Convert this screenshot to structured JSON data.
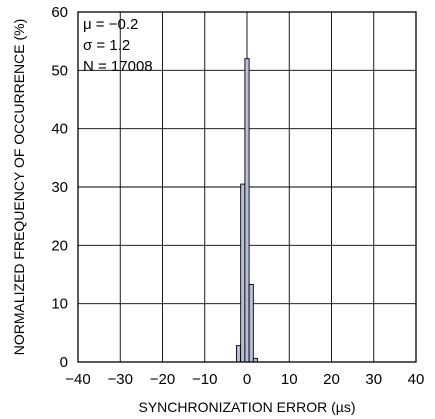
{
  "chart_data": {
    "type": "bar",
    "xlabel": "SYNCHRONIZATION ERROR (µs)",
    "ylabel": "NORMALIZED FREQUENCY OF OCCURRENCE (%)",
    "xlim": [
      -40,
      40
    ],
    "ylim": [
      0,
      60
    ],
    "x_ticks": [
      -40,
      -30,
      -20,
      -10,
      0,
      10,
      20,
      30,
      40
    ],
    "x_tick_labels": [
      "−40",
      "−30",
      "−20",
      "−10",
      "0",
      "10",
      "20",
      "30",
      "40"
    ],
    "y_ticks": [
      0,
      10,
      20,
      30,
      40,
      50,
      60
    ],
    "y_tick_labels": [
      "0",
      "10",
      "20",
      "30",
      "40",
      "50",
      "60"
    ],
    "bin_width": 1,
    "bins": [
      {
        "x": -2,
        "value": 2.8
      },
      {
        "x": -1,
        "value": 30.5
      },
      {
        "x": 0,
        "value": 52.0
      },
      {
        "x": 1,
        "value": 13.3
      },
      {
        "x": 2,
        "value": 0.6
      }
    ],
    "grid": true,
    "annotations": [
      {
        "text": "μ = −0.2"
      },
      {
        "text": "σ = 1.2"
      },
      {
        "text": "N = 17008"
      }
    ],
    "colors": {
      "bar_fill": "#b7bfdb",
      "bar_stroke": "#000000",
      "grid": "#000000",
      "axis": "#000000"
    }
  }
}
